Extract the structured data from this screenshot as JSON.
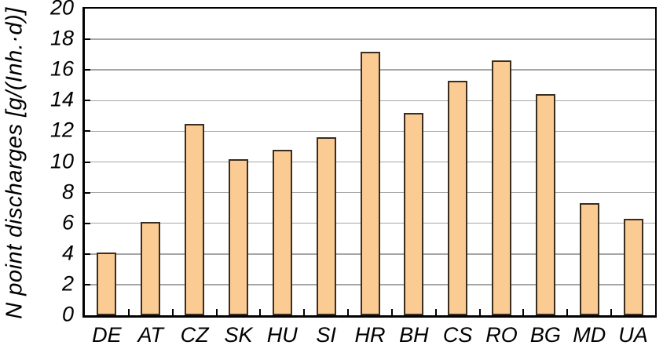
{
  "chart_data": {
    "type": "bar",
    "title": "",
    "xlabel": "",
    "ylabel": "N point discharges [g/(Inh.·d)]",
    "categories": [
      "DE",
      "AT",
      "CZ",
      "SK",
      "HU",
      "SI",
      "HR",
      "BH",
      "CS",
      "RO",
      "BG",
      "MD",
      "UA"
    ],
    "values": [
      4.1,
      6.1,
      12.5,
      10.2,
      10.8,
      11.6,
      17.2,
      13.2,
      15.3,
      16.6,
      14.4,
      7.3,
      6.3
    ],
    "ylim": [
      0,
      20
    ],
    "ytick_step": 2,
    "ytick_labels": [
      "0",
      "2",
      "4",
      "6",
      "8",
      "10",
      "12",
      "14",
      "16",
      "18",
      "20"
    ],
    "grid": true,
    "legend_position": "none",
    "bar_color": "#FBCB94",
    "bar_border_color": "#3A2D1F",
    "gridline_color": "#A6A6A6",
    "axis_color": "#000000",
    "background_color": "#FFFFFF"
  }
}
